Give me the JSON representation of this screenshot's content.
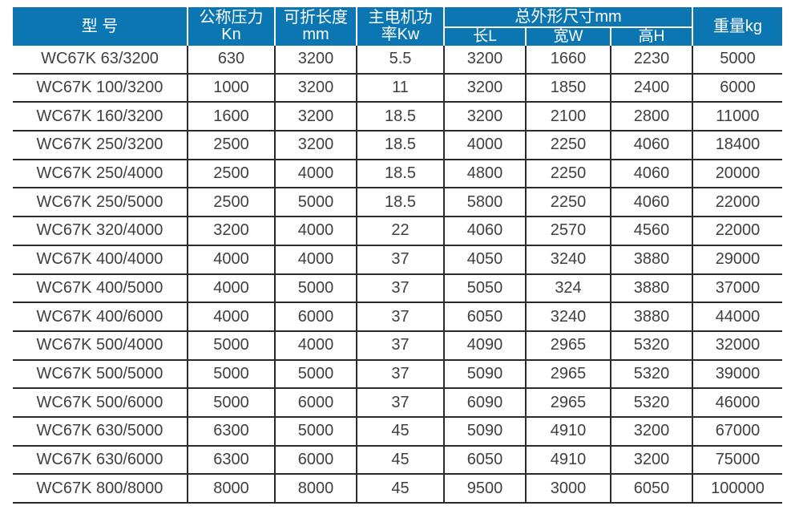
{
  "palette": {
    "header_bg": "#0c76b2",
    "header_text": "#ffffff",
    "body_text": "#3f3f3f",
    "grid_line": "#2b2b2b",
    "page_bg": "#ffffff"
  },
  "table": {
    "header": {
      "model": "型 号",
      "pressure": [
        "公称压力",
        "Kn"
      ],
      "fold_length": [
        "可折长度",
        "mm"
      ],
      "motor_power": [
        "主电机功",
        "率Kw"
      ],
      "overall_dims": "总外形尺寸mm",
      "dim_length": "长L",
      "dim_width": "宽W",
      "dim_height": "高H",
      "weight": "重量kg"
    }
  },
  "chart_data": {
    "type": "table",
    "columns": [
      "型 号",
      "公称压力 Kn",
      "可折长度 mm",
      "主电机功率Kw",
      "长L",
      "宽W",
      "高H",
      "重量kg"
    ],
    "column_group": {
      "label": "总外形尺寸mm",
      "spans": [
        "长L",
        "宽W",
        "高H"
      ]
    },
    "rows": [
      [
        "WC67K 63/3200",
        "630",
        "3200",
        "5.5",
        "3200",
        "1660",
        "2230",
        "5000"
      ],
      [
        "WC67K 100/3200",
        "1000",
        "3200",
        "11",
        "3200",
        "1850",
        "2400",
        "6000"
      ],
      [
        "WC67K 160/3200",
        "1600",
        "3200",
        "18.5",
        "3200",
        "2100",
        "2800",
        "11000"
      ],
      [
        "WC67K 250/3200",
        "2500",
        "3200",
        "18.5",
        "4000",
        "2250",
        "4060",
        "18400"
      ],
      [
        "WC67K 250/4000",
        "2500",
        "4000",
        "18.5",
        "4800",
        "2250",
        "4060",
        "20000"
      ],
      [
        "WC67K 250/5000",
        "2500",
        "5000",
        "18.5",
        "5800",
        "2250",
        "4060",
        "22000"
      ],
      [
        "WC67K 320/4000",
        "3200",
        "4000",
        "22",
        "4060",
        "2570",
        "4560",
        "22000"
      ],
      [
        "WC67K 400/4000",
        "4000",
        "4000",
        "37",
        "4050",
        "3240",
        "3880",
        "29000"
      ],
      [
        "WC67K 400/5000",
        "4000",
        "5000",
        "37",
        "5050",
        "324",
        "3880",
        "37000"
      ],
      [
        "WC67K 400/6000",
        "4000",
        "6000",
        "37",
        "6050",
        "3240",
        "3880",
        "44000"
      ],
      [
        "WC67K 500/4000",
        "5000",
        "4000",
        "37",
        "4090",
        "2965",
        "5320",
        "32000"
      ],
      [
        "WC67K 500/5000",
        "5000",
        "5000",
        "37",
        "5090",
        "2965",
        "5320",
        "39000"
      ],
      [
        "WC67K 500/6000",
        "5000",
        "6000",
        "37",
        "6090",
        "2965",
        "5320",
        "46000"
      ],
      [
        "WC67K 630/5000",
        "6300",
        "5000",
        "45",
        "5090",
        "4910",
        "3200",
        "67000"
      ],
      [
        "WC67K 630/6000",
        "6300",
        "6000",
        "45",
        "6050",
        "4910",
        "3200",
        "75000"
      ],
      [
        "WC67K 800/8000",
        "8000",
        "8000",
        "45",
        "9500",
        "3000",
        "6050",
        "100000"
      ]
    ]
  }
}
